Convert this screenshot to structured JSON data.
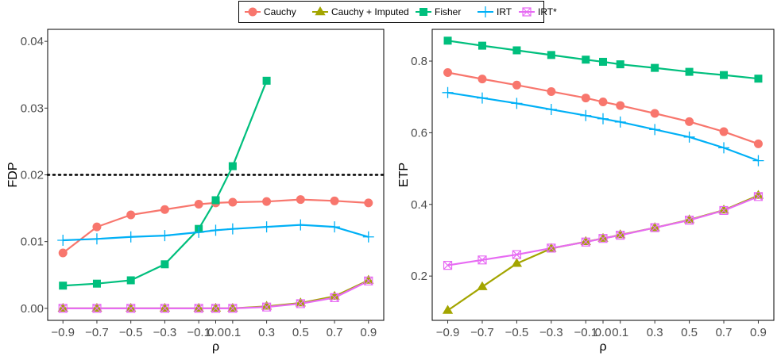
{
  "legend": {
    "entries": [
      {
        "name": "Cauchy",
        "color": "#F8766D",
        "marker": "circle"
      },
      {
        "name": "Cauchy + Imputed",
        "color": "#A3A500",
        "marker": "triangle"
      },
      {
        "name": "Fisher",
        "color": "#00BF7D",
        "marker": "square"
      },
      {
        "name": "IRT",
        "color": "#00B0F6",
        "marker": "plus"
      },
      {
        "name": "IRT*",
        "color": "#E76BF3",
        "marker": "square-cross"
      }
    ]
  },
  "chart_data": [
    {
      "type": "line",
      "xlabel": "ρ",
      "ylabel": "FDP",
      "x": [
        -0.9,
        -0.7,
        -0.5,
        -0.3,
        -0.1,
        0.0,
        0.1,
        0.3,
        0.5,
        0.7,
        0.9
      ],
      "xticks": [
        -0.9,
        -0.7,
        -0.5,
        -0.3,
        -0.1,
        0.0,
        0.1,
        0.3,
        0.5,
        0.7,
        0.9
      ],
      "xtick_labels": [
        "−0.9",
        "−0.7",
        "−0.5",
        "−0.3",
        "−0.1",
        "0.0",
        "0.1",
        "0.3",
        "0.5",
        "0.7",
        "0.9"
      ],
      "xlim": [
        -0.99,
        0.99
      ],
      "ylim": [
        -0.0018,
        0.0418
      ],
      "yticks": [
        0.0,
        0.01,
        0.02,
        0.03,
        0.04
      ],
      "ytick_labels": [
        "0.00",
        "0.01",
        "0.02",
        "0.03",
        "0.04"
      ],
      "reference_line": {
        "y": 0.02,
        "style": "dotted"
      },
      "series": [
        {
          "name": "Cauchy",
          "values": [
            0.0083,
            0.0122,
            0.014,
            0.0148,
            0.0156,
            0.0158,
            0.0159,
            0.016,
            0.0163,
            0.0161,
            0.0158
          ]
        },
        {
          "name": "Cauchy + Imputed",
          "values": [
            0.0,
            0.0,
            0.0,
            0.0,
            0.0,
            0.0,
            0.0,
            0.0003,
            0.0008,
            0.0018,
            0.0042
          ]
        },
        {
          "name": "Fisher",
          "values": [
            0.0034,
            0.0037,
            0.0042,
            0.0066,
            0.0119,
            0.0162,
            0.0213,
            0.0341,
            null,
            null,
            null
          ]
        },
        {
          "name": "IRT",
          "values": [
            0.0102,
            0.0104,
            0.0107,
            0.0109,
            0.0114,
            0.0117,
            0.0119,
            0.0122,
            0.0125,
            0.0122,
            0.0107
          ]
        },
        {
          "name": "IRT*",
          "values": [
            0.0,
            0.0,
            0.0,
            0.0,
            0.0,
            0.0,
            0.0,
            0.0002,
            0.0007,
            0.0016,
            0.0041
          ]
        }
      ]
    },
    {
      "type": "line",
      "xlabel": "ρ",
      "ylabel": "ETP",
      "x": [
        -0.9,
        -0.7,
        -0.5,
        -0.3,
        -0.1,
        0.0,
        0.1,
        0.3,
        0.5,
        0.7,
        0.9
      ],
      "xticks": [
        -0.9,
        -0.7,
        -0.5,
        -0.3,
        -0.1,
        0.0,
        0.1,
        0.3,
        0.5,
        0.7,
        0.9
      ],
      "xtick_labels": [
        "−0.9",
        "−0.7",
        "−0.5",
        "−0.3",
        "−0.1",
        "0.0",
        "0.1",
        "0.3",
        "0.5",
        "0.7",
        "0.9"
      ],
      "xlim": [
        -0.99,
        0.99
      ],
      "ylim": [
        0.0764,
        0.8886
      ],
      "yticks": [
        0.2,
        0.4,
        0.6,
        0.8
      ],
      "ytick_labels": [
        "0.2",
        "0.4",
        "0.6",
        "0.8"
      ],
      "series": [
        {
          "name": "Cauchy",
          "values": [
            0.768,
            0.75,
            0.733,
            0.715,
            0.697,
            0.686,
            0.676,
            0.654,
            0.631,
            0.603,
            0.569
          ]
        },
        {
          "name": "Cauchy + Imputed",
          "values": [
            0.104,
            0.17,
            0.235,
            0.277,
            0.296,
            0.305,
            0.315,
            0.335,
            0.357,
            0.384,
            0.425
          ]
        },
        {
          "name": "Fisher",
          "values": [
            0.857,
            0.843,
            0.83,
            0.817,
            0.804,
            0.798,
            0.791,
            0.781,
            0.77,
            0.761,
            0.751
          ]
        },
        {
          "name": "IRT",
          "values": [
            0.712,
            0.697,
            0.682,
            0.665,
            0.648,
            0.639,
            0.63,
            0.609,
            0.588,
            0.558,
            0.522
          ]
        },
        {
          "name": "IRT*",
          "values": [
            0.23,
            0.245,
            0.26,
            0.278,
            0.295,
            0.305,
            0.314,
            0.335,
            0.356,
            0.383,
            0.422
          ]
        }
      ]
    }
  ]
}
